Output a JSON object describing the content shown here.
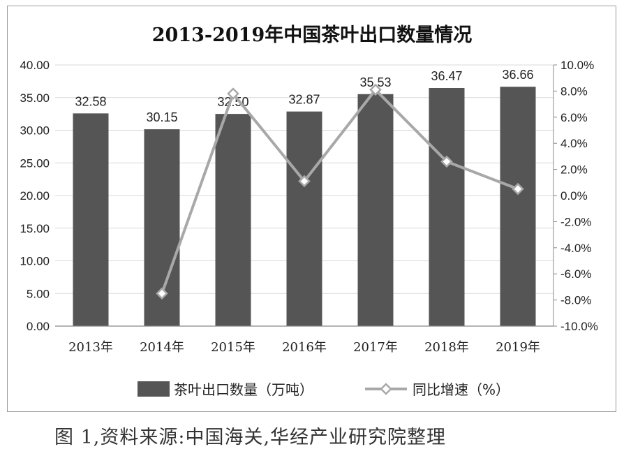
{
  "caption": "图 1,资料来源:中国海关,华经产业研究院整理",
  "chart_data": {
    "type": "bar",
    "title": "2013-2019年中国茶叶出口数量情况",
    "categories": [
      "2013年",
      "2014年",
      "2015年",
      "2016年",
      "2017年",
      "2018年",
      "2019年"
    ],
    "series": [
      {
        "name": "茶叶出口数量（万吨）",
        "type": "bar",
        "axis": "left",
        "values": [
          32.58,
          30.15,
          32.5,
          32.87,
          35.53,
          36.47,
          36.66
        ],
        "labels": [
          "32.58",
          "30.15",
          "32.50",
          "32.87",
          "35.53",
          "36.47",
          "36.66"
        ]
      },
      {
        "name": "同比增速（%）",
        "type": "line",
        "axis": "right",
        "values": [
          null,
          -7.5,
          7.8,
          1.1,
          8.1,
          2.6,
          0.5
        ]
      }
    ],
    "ylim_left": [
      0,
      40
    ],
    "yticks_left": [
      "0.00",
      "5.00",
      "10.00",
      "15.00",
      "20.00",
      "25.00",
      "30.00",
      "35.00",
      "40.00"
    ],
    "ylim_right": [
      -10,
      10
    ],
    "yticks_right": [
      "-10.0%",
      "-8.0%",
      "-6.0%",
      "-4.0%",
      "-2.0%",
      "0.0%",
      "2.0%",
      "4.0%",
      "6.0%",
      "8.0%",
      "10.0%"
    ],
    "grid": true,
    "legend_position": "bottom",
    "colors": {
      "bar": "#555555",
      "line": "#a8a8a8",
      "marker_fill": "#ffffff",
      "grid": "#d9d9d9",
      "text": "#222222"
    }
  }
}
